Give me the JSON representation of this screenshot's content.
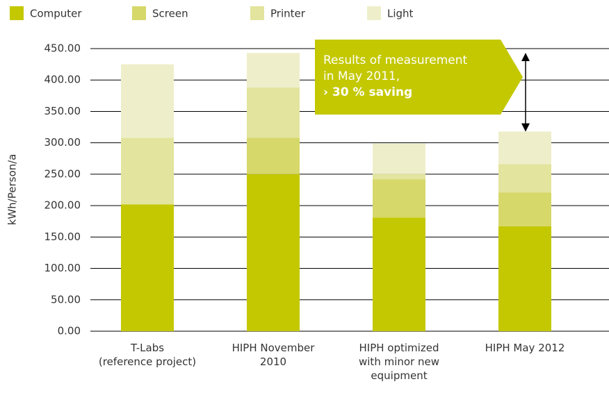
{
  "chart_data": {
    "type": "stacked_bar",
    "y_label": "kWh/Person/a",
    "categories": [
      "T-Labs\n(reference project)",
      "HIPH November\n2010",
      "HIPH optimized\nwith minor new\nequipment",
      "HIPH May 2012"
    ],
    "series": [
      {
        "name": "Computer",
        "color": "#c3c800",
        "values": [
          202,
          250,
          181,
          167
        ]
      },
      {
        "name": "Screen",
        "color": "#d6d86a",
        "values": [
          0,
          58,
          61,
          54
        ]
      },
      {
        "name": "Printer",
        "color": "#e3e49d",
        "values": [
          106,
          80,
          8,
          45
        ]
      },
      {
        "name": "Light",
        "color": "#eeefca",
        "values": [
          117,
          55,
          49,
          52
        ]
      }
    ],
    "ylim": [
      0,
      450
    ],
    "yticks": [
      {
        "value": 0,
        "label": "0.00"
      },
      {
        "value": 50,
        "label": "50.00"
      },
      {
        "value": 100,
        "label": "100.00"
      },
      {
        "value": 150,
        "label": "150.00"
      },
      {
        "value": 200,
        "label": "200.00"
      },
      {
        "value": 250,
        "label": "250.00"
      },
      {
        "value": 300,
        "label": "300.00"
      },
      {
        "value": 350,
        "label": "350.00"
      },
      {
        "value": 400,
        "label": "400.00"
      },
      {
        "value": 450,
        "label": "450.00"
      }
    ],
    "grid": true,
    "legend": "top",
    "annotation": {
      "lines": [
        "Results of measurement",
        "in May 2011,"
      ],
      "highlight": "› 30 % saving",
      "color": "#c3c800"
    }
  }
}
